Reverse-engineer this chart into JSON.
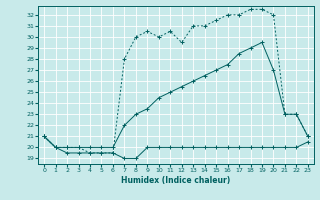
{
  "xlabel": "Humidex (Indice chaleur)",
  "bg_color": "#c8eaea",
  "grid_color": "#b0d0d0",
  "line_color": "#006060",
  "xlim": [
    -0.5,
    23.5
  ],
  "ylim": [
    18.5,
    32.8
  ],
  "yticks": [
    19,
    20,
    21,
    22,
    23,
    24,
    25,
    26,
    27,
    28,
    29,
    30,
    31,
    32
  ],
  "xticks": [
    0,
    1,
    2,
    3,
    4,
    5,
    6,
    7,
    8,
    9,
    10,
    11,
    12,
    13,
    14,
    15,
    16,
    17,
    18,
    19,
    20,
    21,
    22,
    23
  ],
  "s1_x": [
    0,
    1,
    2,
    3,
    4,
    5,
    6,
    7,
    8,
    9,
    10,
    11,
    12,
    13,
    14,
    15,
    16,
    17,
    18,
    19,
    20,
    21,
    22,
    23
  ],
  "s1_y": [
    21,
    20,
    19.5,
    19.5,
    19.5,
    19.5,
    19.5,
    19,
    19,
    20,
    20,
    20,
    20,
    20,
    20,
    20,
    20,
    20,
    20,
    20,
    20,
    20,
    20,
    20.5
  ],
  "s2_x": [
    0,
    1,
    2,
    3,
    4,
    5,
    6,
    7,
    8,
    9,
    10,
    11,
    12,
    13,
    14,
    15,
    16,
    17,
    18,
    19,
    20,
    21,
    22,
    23
  ],
  "s2_y": [
    21,
    20,
    20,
    20,
    20,
    20,
    20,
    22,
    23,
    23.5,
    24.5,
    25,
    25.5,
    26,
    26.5,
    27,
    27.5,
    28.5,
    29,
    29.5,
    27,
    23,
    23,
    21
  ],
  "s3_x": [
    0,
    1,
    2,
    3,
    4,
    5,
    6,
    7,
    8,
    9,
    10,
    11,
    12,
    13,
    14,
    15,
    16,
    17,
    18,
    19,
    20,
    21,
    22,
    23
  ],
  "s3_y": [
    21,
    20,
    20,
    20,
    19.5,
    19.5,
    19.5,
    28,
    30,
    30.5,
    30,
    30.5,
    29.5,
    31,
    31,
    31.5,
    32,
    32,
    32.5,
    32.5,
    32,
    23,
    23,
    21
  ]
}
